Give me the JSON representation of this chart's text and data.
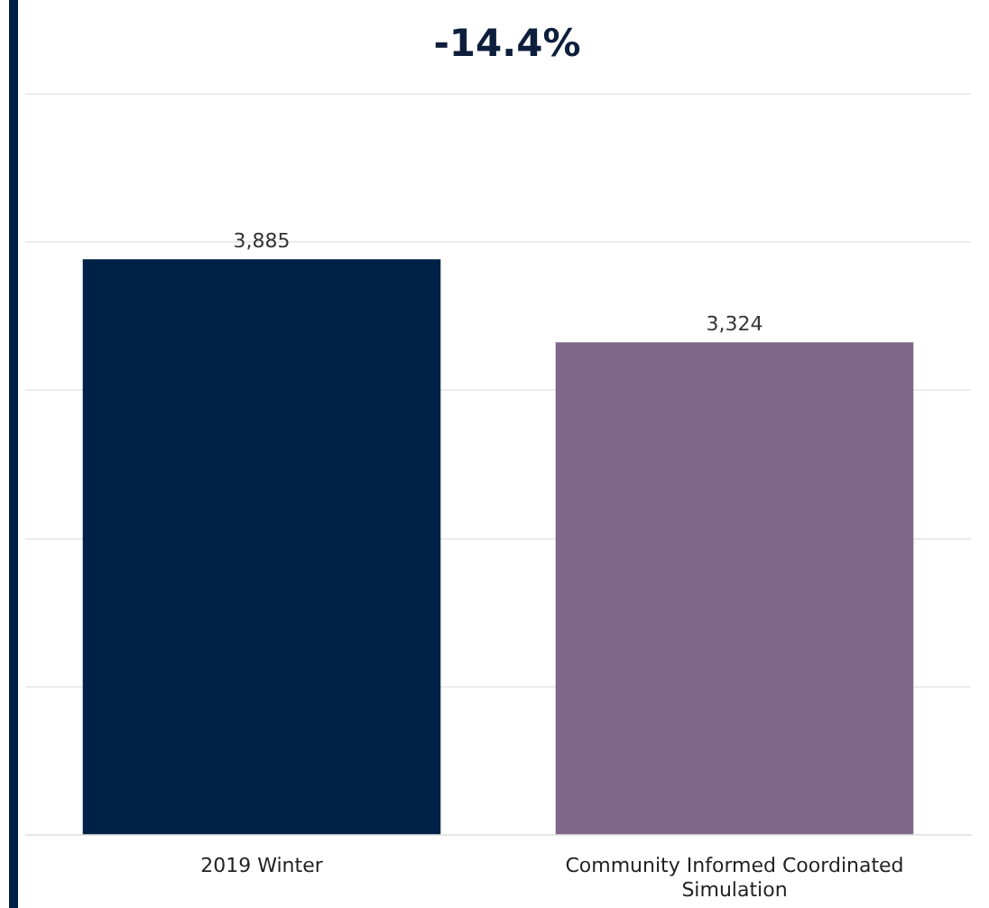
{
  "chart_data": {
    "type": "bar",
    "title": "-14.4%",
    "categories": [
      "2019 Winter",
      "Community Informed Coordinated Simulation"
    ],
    "values": [
      3885,
      3324
    ],
    "colors": [
      "#002147",
      "#7f6789"
    ],
    "value_labels": [
      "3,885",
      "3,324"
    ],
    "tick_labels": "x",
    "grid": "y",
    "legend": false
  }
}
